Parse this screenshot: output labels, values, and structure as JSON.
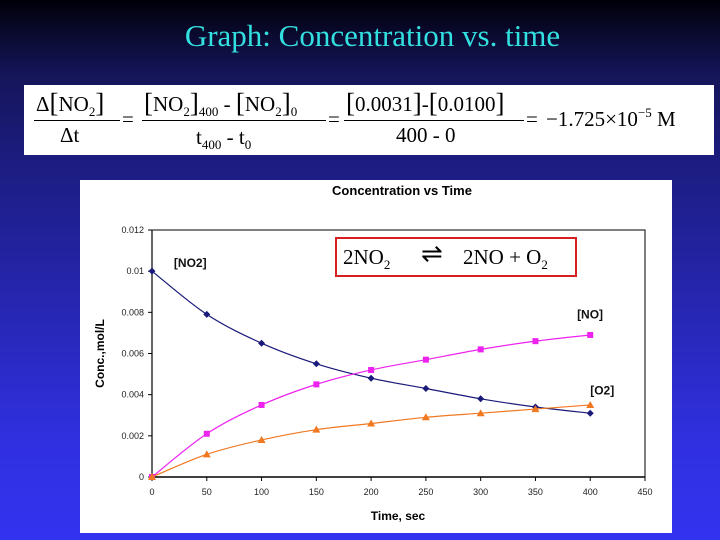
{
  "slide": {
    "title": "Graph:  Concentration vs. time",
    "background_colors": [
      "#000008",
      "#1c1c80",
      "#3333f0"
    ],
    "title_color": "#33e0e0"
  },
  "equation": {
    "lhs_num_delta": "Δ",
    "lhs_num_species": "NO",
    "lhs_num_sub": "2",
    "lhs_den": "Δt",
    "eq1": "=",
    "mid_num_a": "NO",
    "mid_num_a_sub": "2",
    "mid_num_a_idx": "400",
    "mid_num_minus": "-",
    "mid_num_b": "NO",
    "mid_num_b_sub": "2",
    "mid_num_b_idx": "0",
    "mid_den_t1": "t",
    "mid_den_t1_sub": "400",
    "mid_den_minus": " - ",
    "mid_den_t2": "t",
    "mid_den_t2_sub": "0",
    "eq2": "=",
    "num_val_a": "0.0031",
    "num_minus": "-",
    "num_val_b": "0.0100",
    "den_val": "400 - 0",
    "eq3": "=",
    "result_mantissa": "−1.725×10",
    "result_exp": "−5",
    "result_unit": " M"
  },
  "reaction": {
    "left": "2NO",
    "left_sub": "2",
    "arrow": "⇌",
    "right": "2NO + O",
    "right_sub": "2",
    "border_color": "#d42020"
  },
  "chart_data": {
    "type": "line",
    "title": "Concentration vs Time",
    "xlabel": "Time, sec",
    "ylabel": "Conc.,mol/L",
    "xlim": [
      0,
      450
    ],
    "ylim": [
      0,
      0.012
    ],
    "x_ticks": [
      "0",
      "50",
      "100",
      "150",
      "200",
      "250",
      "300",
      "350",
      "400",
      "450"
    ],
    "y_ticks": [
      "0",
      "0.002",
      "0.004",
      "0.006",
      "0.008",
      "0.01",
      "0.012"
    ],
    "grid": false,
    "legend": "inline labels",
    "x": [
      0,
      50,
      100,
      150,
      200,
      250,
      300,
      350,
      400
    ],
    "series": [
      {
        "name": "[NO2]",
        "color": "#1a1a7a",
        "marker": "diamond",
        "values": [
          0.01,
          0.0079,
          0.0065,
          0.0055,
          0.0048,
          0.0043,
          0.0038,
          0.0034,
          0.0031
        ]
      },
      {
        "name": "[NO]",
        "color": "#ee22ee",
        "marker": "square",
        "values": [
          0.0,
          0.0021,
          0.0035,
          0.0045,
          0.0052,
          0.0057,
          0.0062,
          0.0066,
          0.0069
        ]
      },
      {
        "name": "[O2]",
        "color": "#f07820",
        "marker": "triangle",
        "values": [
          0.0,
          0.0011,
          0.0018,
          0.0023,
          0.0026,
          0.0029,
          0.0031,
          0.0033,
          0.0035
        ]
      }
    ],
    "annotations": [
      {
        "text": "[NO2]",
        "x": 20,
        "y": 0.0102
      },
      {
        "text": "[NO]",
        "x": 388,
        "y": 0.0077
      },
      {
        "text": "[O2]",
        "x": 400,
        "y": 0.004
      }
    ]
  }
}
